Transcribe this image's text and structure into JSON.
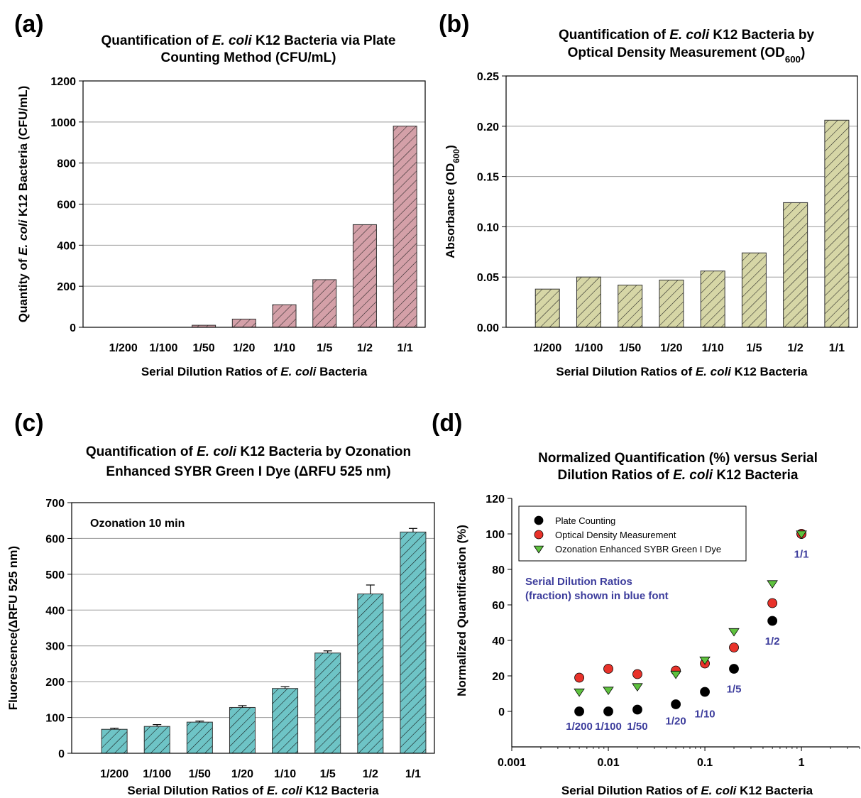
{
  "colors": {
    "bar_a": "#d4a0a8",
    "bar_b": "#d6d6a6",
    "bar_c": "#6ec4c6",
    "plate": "#000000",
    "od": "#e8322a",
    "sybr": "#5ec23e",
    "label_blue": "#3c3c9c"
  },
  "chart_data": [
    {
      "panel": "(a)",
      "type": "bar",
      "title_parts": [
        [
          {
            "t": "Quantification of "
          },
          {
            "t": "E. coli",
            "i": true
          },
          {
            "t": " K12 Bacteria via Plate"
          }
        ],
        [
          {
            "t": "Counting Method (CFU/mL)"
          }
        ]
      ],
      "xlabel_parts": [
        {
          "t": "Serial Dilution Ratios of "
        },
        {
          "t": "E. coli",
          "i": true
        },
        {
          "t": " Bacteria"
        }
      ],
      "ylabel_parts": [
        {
          "t": "Quantity of "
        },
        {
          "t": "E. coli",
          "i": true
        },
        {
          "t": " K12 Bacteria (CFU/mL)"
        }
      ],
      "categories": [
        "1/200",
        "1/100",
        "1/50",
        "1/20",
        "1/10",
        "1/5",
        "1/2",
        "1/1"
      ],
      "values": [
        0,
        0,
        10,
        40,
        110,
        232,
        500,
        980
      ],
      "ylim": [
        0,
        1200
      ],
      "yticks": [
        "0",
        "200",
        "400",
        "600",
        "800",
        "1000",
        "1200"
      ],
      "grid": true
    },
    {
      "panel": "(b)",
      "type": "bar",
      "title_parts": [
        [
          {
            "t": "Quantification of "
          },
          {
            "t": "E. coli",
            "i": true
          },
          {
            "t": " K12 Bacteria by"
          }
        ],
        [
          {
            "t": "Optical Density Measurement (OD"
          },
          {
            "t": "600",
            "sub": true
          },
          {
            "t": ")"
          }
        ]
      ],
      "xlabel_parts": [
        {
          "t": "Serial Dilution Ratios of "
        },
        {
          "t": "E. coli",
          "i": true
        },
        {
          "t": " K12 Bacteria"
        }
      ],
      "ylabel_parts": [
        {
          "t": "Absorbance (OD"
        },
        {
          "t": "600",
          "sub": true
        },
        {
          "t": ")"
        }
      ],
      "categories": [
        "1/200",
        "1/100",
        "1/50",
        "1/20",
        "1/10",
        "1/5",
        "1/2",
        "1/1"
      ],
      "values": [
        0.038,
        0.05,
        0.042,
        0.047,
        0.056,
        0.074,
        0.124,
        0.206
      ],
      "ylim": [
        0,
        0.25
      ],
      "yticks": [
        "0.00",
        "0.05",
        "0.10",
        "0.15",
        "0.20",
        "0.25"
      ],
      "grid": true
    },
    {
      "panel": "(c)",
      "type": "bar",
      "title_parts": [
        [
          {
            "t": "Quantification of "
          },
          {
            "t": "E. coli",
            "i": true
          },
          {
            "t": " K12 Bacteria by Ozonation"
          }
        ],
        [
          {
            "t": "Enhanced SYBR Green I Dye (ΔRFU 525 nm)"
          }
        ]
      ],
      "xlabel_parts": [
        {
          "t": "Serial Dilution Ratios of "
        },
        {
          "t": "E. coli",
          "i": true
        },
        {
          "t": " K12 Bacteria"
        }
      ],
      "ylabel_parts": [
        {
          "t": "Fluorescence(ΔRFU 525 nm)"
        }
      ],
      "annotation": "Ozonation 10 min",
      "categories": [
        "1/200",
        "1/100",
        "1/50",
        "1/20",
        "1/10",
        "1/5",
        "1/2",
        "1/1"
      ],
      "values": [
        67,
        75,
        87,
        128,
        181,
        280,
        445,
        618
      ],
      "errors": [
        3,
        5,
        3,
        5,
        5,
        6,
        25,
        10
      ],
      "ylim": [
        0,
        700
      ],
      "yticks": [
        "0",
        "100",
        "200",
        "300",
        "400",
        "500",
        "600",
        "700"
      ],
      "grid": true
    },
    {
      "panel": "(d)",
      "type": "scatter",
      "title_parts": [
        [
          {
            "t": "Normalized Quantification (%) versus Serial"
          }
        ],
        [
          {
            "t": "Dilution Ratios of "
          },
          {
            "t": "E. coli",
            "i": true
          },
          {
            "t": " K12 Bacteria"
          }
        ]
      ],
      "xlabel_parts": [
        {
          "t": "Serial Dilution Ratios of "
        },
        {
          "t": "E. coli",
          "i": true
        },
        {
          "t": " K12 Bacteria"
        }
      ],
      "ylabel_parts": [
        {
          "t": "Normalized Quantification (%)"
        }
      ],
      "xscale": "log",
      "xlim": [
        0.001,
        4
      ],
      "ylim": [
        -20,
        120
      ],
      "xticks": [
        {
          "v": 0.001,
          "label": "0.001"
        },
        {
          "v": 0.01,
          "label": "0.01"
        },
        {
          "v": 0.1,
          "label": "0.1"
        },
        {
          "v": 1,
          "label": "1"
        }
      ],
      "yticks": [
        {
          "v": 0,
          "label": "0"
        },
        {
          "v": 20,
          "label": "20"
        },
        {
          "v": 40,
          "label": "40"
        },
        {
          "v": 60,
          "label": "60"
        },
        {
          "v": 80,
          "label": "80"
        },
        {
          "v": 100,
          "label": "100"
        },
        {
          "v": 120,
          "label": "120"
        }
      ],
      "x": [
        0.005,
        0.01,
        0.02,
        0.05,
        0.1,
        0.2,
        0.5,
        1
      ],
      "series": [
        {
          "name": "Plate Counting",
          "marker": "circle",
          "color": "#000000",
          "values": [
            0,
            0,
            1,
            4,
            11,
            24,
            51,
            100
          ]
        },
        {
          "name": "Optical Density Measurement",
          "marker": "circle",
          "color": "#e8322a",
          "values": [
            19,
            24,
            21,
            23,
            27,
            36,
            61,
            100
          ]
        },
        {
          "name": "Ozonation Enhanced SYBR Green I Dye",
          "marker": "triangle-down",
          "color": "#5ec23e",
          "values": [
            11,
            12,
            14,
            21,
            29,
            45,
            72,
            100
          ]
        }
      ],
      "point_labels": [
        {
          "x": 0.005,
          "y": -8,
          "text": "1/200"
        },
        {
          "x": 0.01,
          "y": -8,
          "text": "1/100"
        },
        {
          "x": 0.02,
          "y": -8,
          "text": "1/50"
        },
        {
          "x": 0.05,
          "y": -5,
          "text": "1/20"
        },
        {
          "x": 0.1,
          "y": -1,
          "text": "1/10"
        },
        {
          "x": 0.2,
          "y": 13,
          "text": "1/5"
        },
        {
          "x": 0.5,
          "y": 40,
          "text": "1/2"
        },
        {
          "x": 1,
          "y": 89,
          "text": "1/1"
        }
      ],
      "annotation_lines": [
        "Serial Dilution Ratios",
        "(fraction) shown in blue font"
      ],
      "legend_loc": "top-left"
    }
  ]
}
